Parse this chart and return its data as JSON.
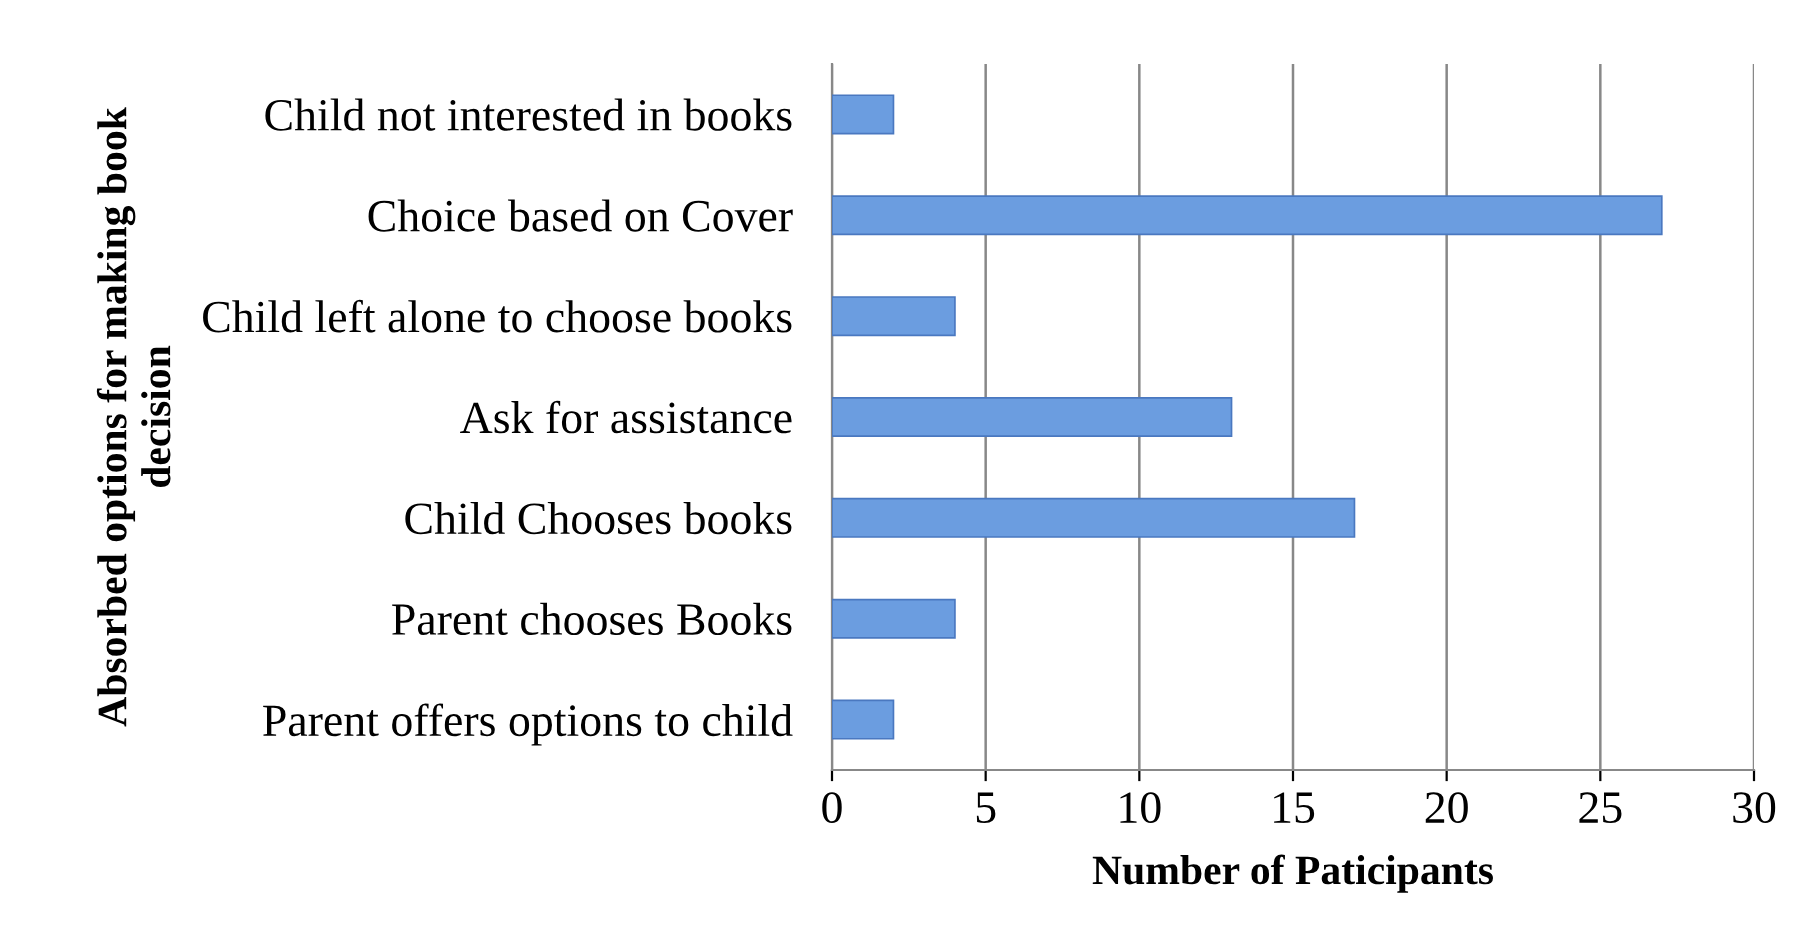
{
  "chart_data": {
    "type": "bar",
    "orientation": "horizontal",
    "categories": [
      "Child not interested in books",
      "Choice based on Cover",
      "Child left alone to choose books",
      "Ask for assistance",
      "Child Chooses books",
      "Parent chooses Books",
      "Parent offers options to child"
    ],
    "values": [
      2,
      27,
      4,
      13,
      17,
      4,
      2
    ],
    "color": "#6b9de0",
    "xlim": [
      0,
      30
    ],
    "xticks": [
      0,
      5,
      10,
      15,
      20,
      25,
      30
    ],
    "grid": "x",
    "legend": false,
    "xlabel": "Number of Paticipants",
    "ylabel": "Absorbed options for making book\ndecision"
  }
}
